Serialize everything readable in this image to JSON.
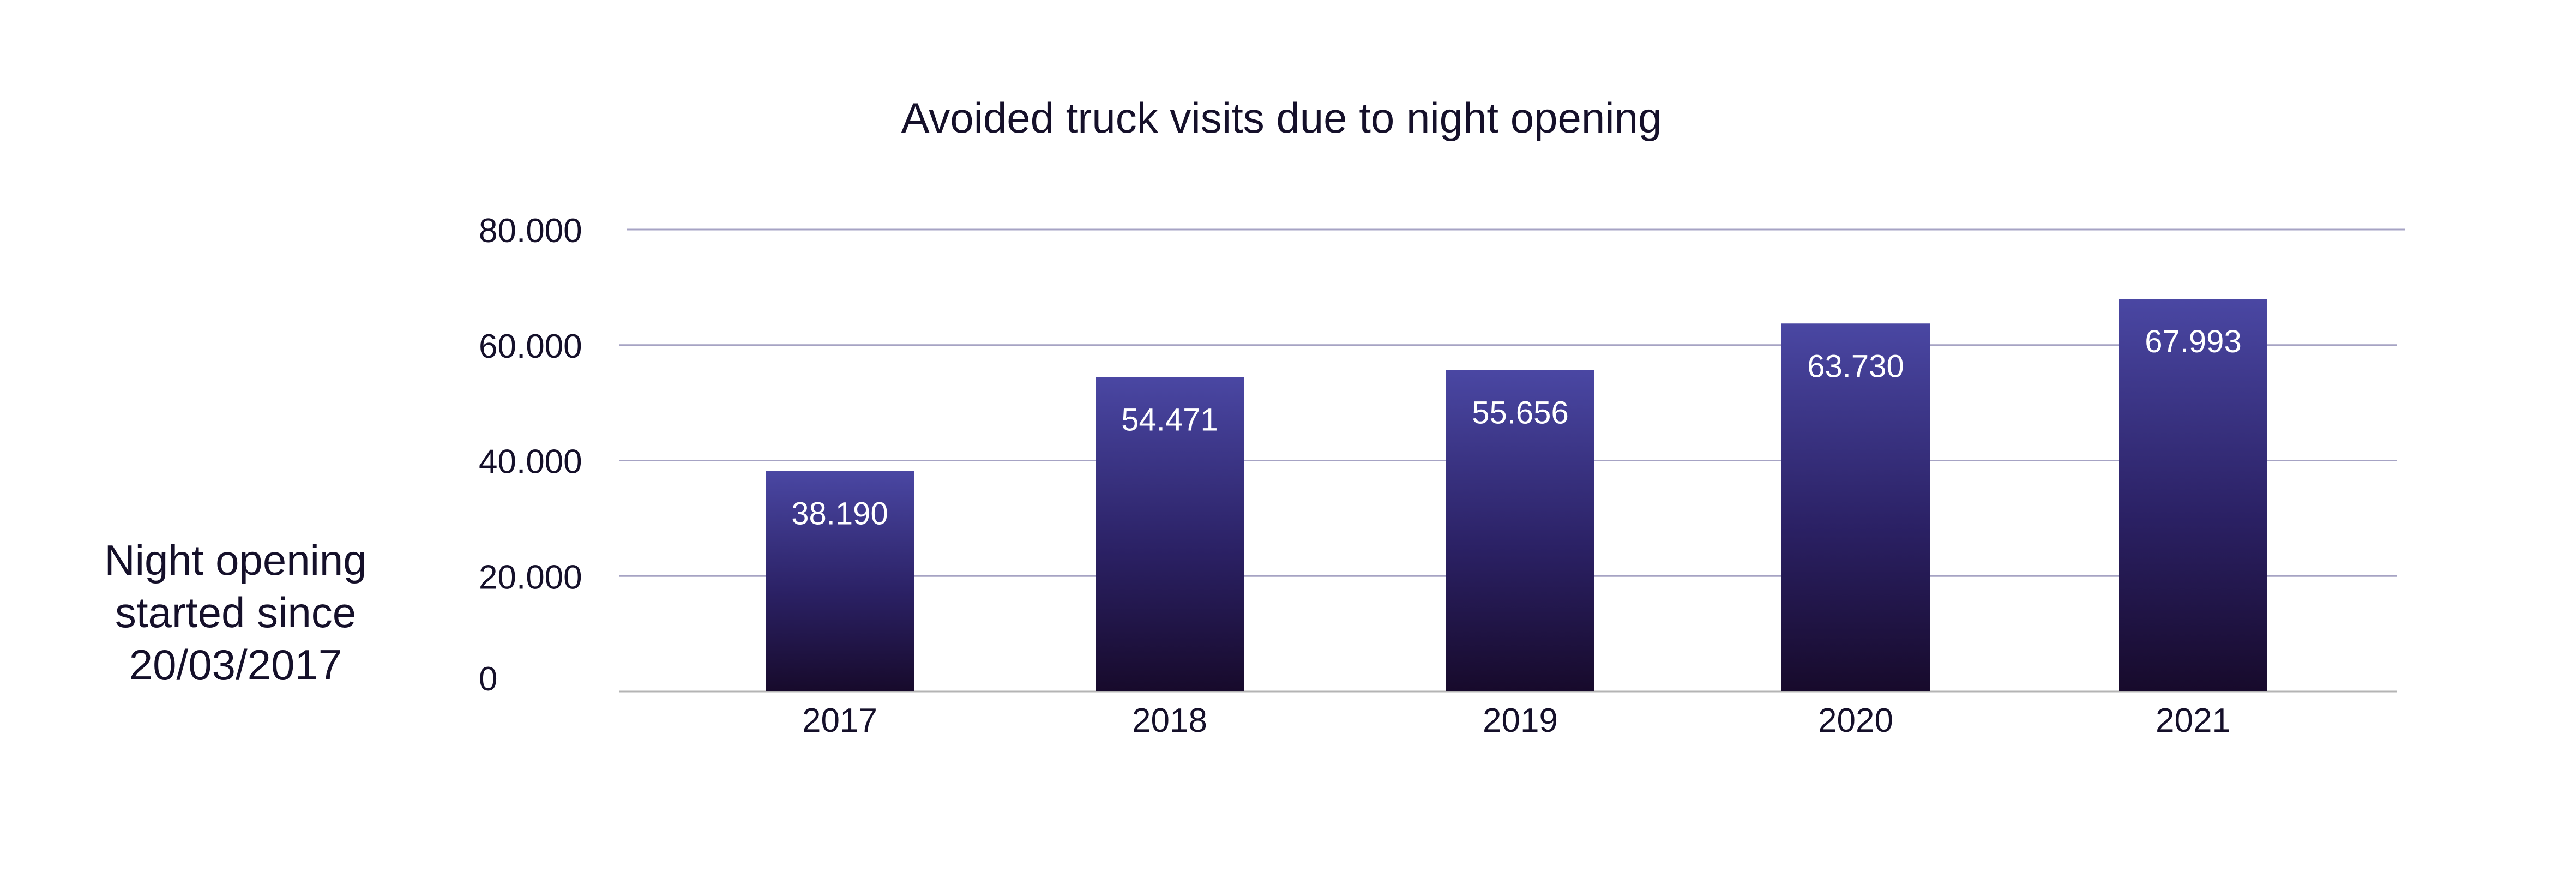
{
  "side_note": {
    "lines": [
      "Night opening",
      "started since",
      "20/03/2017"
    ]
  },
  "colors": {
    "bar_top": "#4a47a3",
    "bar_bottom": "#170a2b",
    "gridline": "#a6a3c4",
    "baseline": "#b4b4b4",
    "text": "#15102a",
    "bar_label": "#ffffff",
    "background": "#ffffff"
  },
  "chart_data": {
    "type": "bar",
    "title": "Avoided truck visits due to night opening",
    "xlabel": "",
    "ylabel": "",
    "categories": [
      "2017",
      "2018",
      "2019",
      "2020",
      "2021"
    ],
    "values": [
      38190,
      54471,
      55656,
      63730,
      67993
    ],
    "value_labels": [
      "38.190",
      "54.471",
      "55.656",
      "63.730",
      "67.993"
    ],
    "ylim": [
      0,
      80000
    ],
    "y_ticks": [
      0,
      20000,
      40000,
      60000,
      80000
    ],
    "y_tick_labels": [
      "0",
      "20.000",
      "40.000",
      "60.000",
      "80.000"
    ],
    "grid": true,
    "legend": "none"
  }
}
